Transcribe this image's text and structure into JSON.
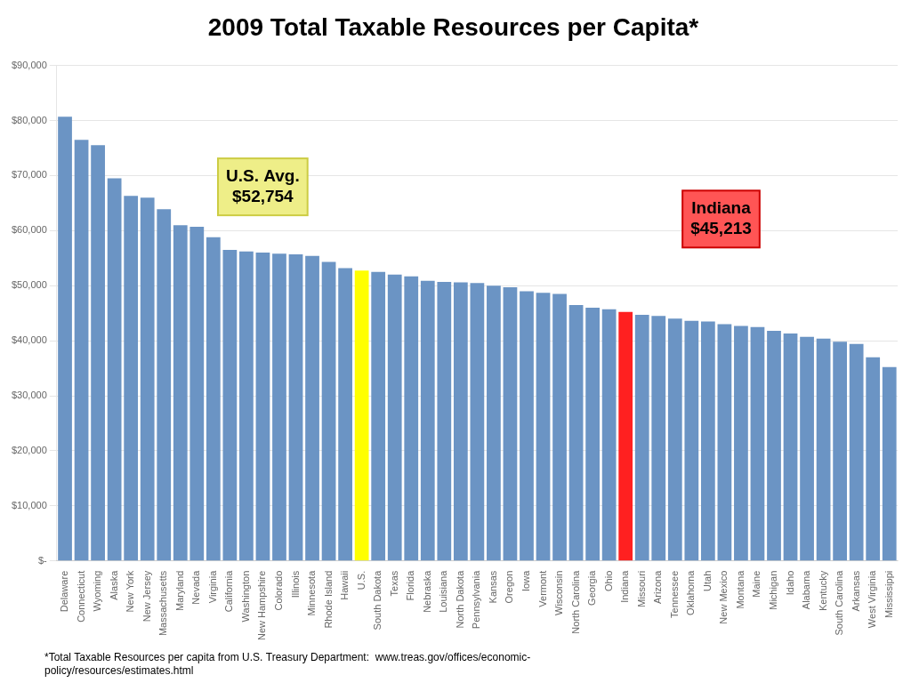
{
  "chart_data": {
    "type": "bar",
    "title": "2009 Total Taxable Resources per Capita*",
    "annotations": [
      "U.S. Avg.\n$52,754",
      "Indiana\n$45,213",
      "*Total Taxable Resources per capita from U.S. Treasury Department:  www.treas.gov/offices/economic-\npolicy/resources/estimates.html"
    ],
    "categories": [
      "Delaware",
      "Connecticut",
      "Wyoming",
      "Alaska",
      "New York",
      "New Jersey",
      "Massachusetts",
      "Maryland",
      "Nevada",
      "Virginia",
      "California",
      "Washington",
      "New Hampshire",
      "Colorado",
      "Illinois",
      "Minnesota",
      "Rhode Island",
      "Hawaii",
      "U.S.",
      "South Dakota",
      "Texas",
      "Florida",
      "Nebraska",
      "Louisiana",
      "North Dakota",
      "Pennsylvania",
      "Kansas",
      "Oregon",
      "Iowa",
      "Vermont",
      "Wisconsin",
      "North Carolina",
      "Georgia",
      "Ohio",
      "Indiana",
      "Missouri",
      "Arizona",
      "Tennessee",
      "Oklahoma",
      "Utah",
      "New Mexico",
      "Montana",
      "Maine",
      "Michigan",
      "Idaho",
      "Alabama",
      "Kentucky",
      "South Carolina",
      "Arkansas",
      "West Virginia",
      "Mississippi"
    ],
    "values": [
      80700,
      76500,
      75500,
      69500,
      66300,
      66000,
      63900,
      61000,
      60700,
      58800,
      56500,
      56200,
      56000,
      55800,
      55700,
      55400,
      54300,
      53200,
      52754,
      52500,
      52000,
      51700,
      50900,
      50700,
      50600,
      50500,
      50000,
      49700,
      49000,
      48700,
      48500,
      46500,
      46000,
      45700,
      45213,
      44700,
      44500,
      44000,
      43600,
      43500,
      43000,
      42700,
      42500,
      41800,
      41300,
      40700,
      40400,
      39800,
      39400,
      37000,
      35200
    ],
    "colors": [
      "#6B94C4",
      "#6B94C4",
      "#6B94C4",
      "#6B94C4",
      "#6B94C4",
      "#6B94C4",
      "#6B94C4",
      "#6B94C4",
      "#6B94C4",
      "#6B94C4",
      "#6B94C4",
      "#6B94C4",
      "#6B94C4",
      "#6B94C4",
      "#6B94C4",
      "#6B94C4",
      "#6B94C4",
      "#6B94C4",
      "#FFFF00",
      "#6B94C4",
      "#6B94C4",
      "#6B94C4",
      "#6B94C4",
      "#6B94C4",
      "#6B94C4",
      "#6B94C4",
      "#6B94C4",
      "#6B94C4",
      "#6B94C4",
      "#6B94C4",
      "#6B94C4",
      "#6B94C4",
      "#6B94C4",
      "#6B94C4",
      "#FF2020",
      "#6B94C4",
      "#6B94C4",
      "#6B94C4",
      "#6B94C4",
      "#6B94C4",
      "#6B94C4",
      "#6B94C4",
      "#6B94C4",
      "#6B94C4",
      "#6B94C4",
      "#6B94C4",
      "#6B94C4",
      "#6B94C4",
      "#6B94C4",
      "#6B94C4",
      "#6B94C4"
    ],
    "ylim": [
      0,
      90000
    ],
    "yticks": [
      {
        "value": 0,
        "label": "$-"
      },
      {
        "value": 10000,
        "label": "$10,000"
      },
      {
        "value": 20000,
        "label": "$20,000"
      },
      {
        "value": 30000,
        "label": "$30,000"
      },
      {
        "value": 40000,
        "label": "$40,000"
      },
      {
        "value": 50000,
        "label": "$50,000"
      },
      {
        "value": 60000,
        "label": "$60,000"
      },
      {
        "value": 70000,
        "label": "$70,000"
      },
      {
        "value": 80000,
        "label": "$80,000"
      },
      {
        "value": 90000,
        "label": "$90,000"
      }
    ],
    "grid": true
  }
}
